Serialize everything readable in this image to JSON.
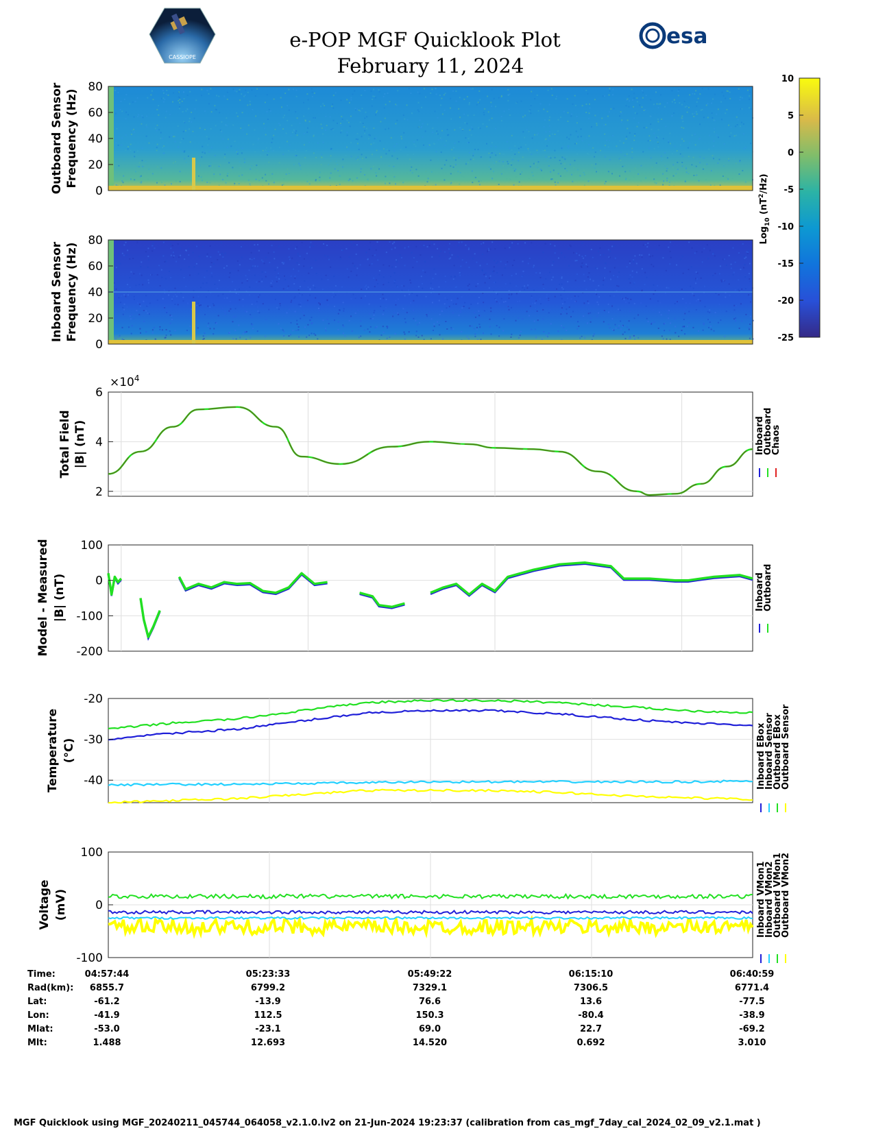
{
  "header": {
    "title": "e-POP MGF Quicklook Plot",
    "date": "February 11, 2024",
    "mission_logo_text": "CASSIOPE",
    "agency_logo_text": "esa"
  },
  "colors": {
    "inboard": "#1f1fd8",
    "outboard": "#22e022",
    "chaos": "#e02020",
    "inboard_sensor": "#22d0ff",
    "outboard_sensor": "#ffff00",
    "total_field_line": "#5a7a1a"
  },
  "colorbar": {
    "label": "Log10 (nT²/Hz)",
    "ticks": [
      "10",
      "5",
      "0",
      "-5",
      "-10",
      "-15",
      "-20",
      "-25"
    ],
    "range": [
      -25,
      10
    ]
  },
  "chart_data": [
    {
      "type": "heatmap",
      "name": "outboard-spectrogram",
      "ylabel": [
        "Outboard Sensor",
        "Frequency (Hz)"
      ],
      "y_ticks": [
        "80",
        "60",
        "40",
        "20",
        "0"
      ],
      "ylim": [
        0,
        80
      ]
    },
    {
      "type": "heatmap",
      "name": "inboard-spectrogram",
      "ylabel": [
        "Inboard Sensor",
        "Frequency (Hz)"
      ],
      "y_ticks": [
        "80",
        "60",
        "40",
        "20",
        "0"
      ],
      "ylim": [
        0,
        80
      ]
    },
    {
      "type": "line",
      "name": "total-field",
      "ylabel": [
        "Total Field",
        "|B| (nT)"
      ],
      "multiplier_base": "×10",
      "multiplier_exp": "4",
      "ylim": [
        1.8,
        6
      ],
      "y_ticks": [
        "6",
        "4",
        "2"
      ],
      "legend": [
        "Inboard",
        "Outboard",
        "Chaos"
      ],
      "x": [
        0,
        0.05,
        0.1,
        0.14,
        0.2,
        0.26,
        0.3,
        0.36,
        0.44,
        0.5,
        0.56,
        0.6,
        0.66,
        0.7,
        0.76,
        0.82,
        0.84,
        0.88,
        0.92,
        0.96,
        1.0
      ],
      "y": [
        2.7,
        3.6,
        4.6,
        5.3,
        5.4,
        4.6,
        3.4,
        3.1,
        3.8,
        4.0,
        3.9,
        3.75,
        3.7,
        3.6,
        2.8,
        2.0,
        1.85,
        1.9,
        2.3,
        3.0,
        3.7
      ]
    },
    {
      "type": "line",
      "name": "model-minus-measured",
      "ylabel": [
        "Model - Measured",
        "|B| (nT)"
      ],
      "ylim": [
        -200,
        100
      ],
      "y_ticks": [
        "100",
        "0",
        "-100",
        "-200"
      ],
      "legend": [
        "Inboard",
        "Outboard"
      ],
      "segments": [
        {
          "x": [
            0.0,
            0.005,
            0.01,
            0.015,
            0.02
          ],
          "y": [
            20,
            -40,
            10,
            -5,
            5
          ]
        },
        {
          "x": [
            0.05,
            0.055,
            0.062,
            0.07,
            0.08
          ],
          "y": [
            -50,
            -110,
            -160,
            -130,
            -85
          ]
        },
        {
          "x": [
            0.11,
            0.12,
            0.14,
            0.16,
            0.18,
            0.2,
            0.22,
            0.24,
            0.26,
            0.28,
            0.3,
            0.32,
            0.34
          ],
          "y": [
            10,
            -25,
            -10,
            -20,
            -5,
            -10,
            -8,
            -30,
            -35,
            -20,
            20,
            -10,
            -5
          ]
        },
        {
          "x": [
            0.39,
            0.41,
            0.42,
            0.44,
            0.46
          ],
          "y": [
            -35,
            -45,
            -70,
            -75,
            -65
          ]
        },
        {
          "x": [
            0.5,
            0.52,
            0.54,
            0.56,
            0.58,
            0.6,
            0.62,
            0.64,
            0.66,
            0.7,
            0.74,
            0.78,
            0.8,
            0.84,
            0.88,
            0.9,
            0.94,
            0.98,
            1.0
          ],
          "y": [
            -35,
            -20,
            -10,
            -40,
            -10,
            -30,
            10,
            20,
            30,
            45,
            50,
            40,
            5,
            5,
            0,
            0,
            10,
            15,
            5
          ]
        }
      ]
    },
    {
      "type": "line",
      "name": "temperature",
      "ylabel": [
        "Temperature",
        "(°C)"
      ],
      "ylim": [
        -45.5,
        -20
      ],
      "y_ticks": [
        "-20",
        "-30",
        "-40"
      ],
      "legend": [
        "Inboard EBox",
        "Inboard Sensor",
        "Outboard EBox",
        "Outboard Sensor"
      ],
      "x": [
        0,
        0.1,
        0.2,
        0.3,
        0.4,
        0.5,
        0.6,
        0.7,
        0.8,
        0.9,
        1.0
      ],
      "series": [
        {
          "key": "inboard_ebox",
          "values": [
            -30,
            -28.5,
            -27.5,
            -25.5,
            -23.5,
            -23,
            -23,
            -23.8,
            -25,
            -26,
            -26.5
          ]
        },
        {
          "key": "inboard_sensor",
          "values": [
            -41.2,
            -41,
            -41,
            -40.8,
            -40.6,
            -40.4,
            -40.4,
            -40.4,
            -40.4,
            -40.4,
            -40.2
          ]
        },
        {
          "key": "outboard_ebox",
          "values": [
            -27.5,
            -26,
            -25,
            -23,
            -21,
            -20.5,
            -20.5,
            -21,
            -22,
            -23,
            -23.5
          ]
        },
        {
          "key": "outboard_sensor",
          "values": [
            -45.5,
            -45,
            -44.5,
            -43.5,
            -42.5,
            -42.5,
            -42.5,
            -43,
            -43.8,
            -44.3,
            -44.7
          ]
        }
      ]
    },
    {
      "type": "line",
      "name": "voltage",
      "ylabel": [
        "Voltage",
        "(mV)"
      ],
      "ylim": [
        -100,
        100
      ],
      "y_ticks": [
        "100",
        "0",
        "-100"
      ],
      "legend": [
        "Inboard VMon1",
        "Inboard VMon2",
        "Outboard VMon1",
        "Outboard VMon2"
      ],
      "series": [
        {
          "key": "inboard_vmon1",
          "level": -14,
          "noise": 3
        },
        {
          "key": "inboard_vmon2",
          "level": -25,
          "noise": 2
        },
        {
          "key": "outboard_vmon1",
          "level": 16,
          "noise": 4
        },
        {
          "key": "outboard_vmon2",
          "level": -42,
          "noise": 14
        }
      ]
    }
  ],
  "orbit_table": {
    "row_labels": [
      "Time:",
      "Rad(km):",
      "Lat:",
      "Lon:",
      "Mlat:",
      "Mlt:"
    ],
    "columns": [
      [
        "04:57:44",
        "6855.7",
        "-61.2",
        "-41.9",
        "-53.0",
        "1.488"
      ],
      [
        "05:23:33",
        "6799.2",
        "-13.9",
        "112.5",
        "-23.1",
        "12.693"
      ],
      [
        "05:49:22",
        "7329.1",
        "76.6",
        "150.3",
        "69.0",
        "14.520"
      ],
      [
        "06:15:10",
        "7306.5",
        "13.6",
        "-80.4",
        "22.7",
        "0.692"
      ],
      [
        "06:40:59",
        "6771.4",
        "-77.5",
        "-38.9",
        "-69.2",
        "3.010"
      ]
    ]
  },
  "footer": "MGF Quicklook using MGF_20240211_045744_064058_v2.1.0.lv2 on 21-Jun-2024 19:23:37 (calibration from cas_mgf_7day_cal_2024_02_09_v2.1.mat )"
}
